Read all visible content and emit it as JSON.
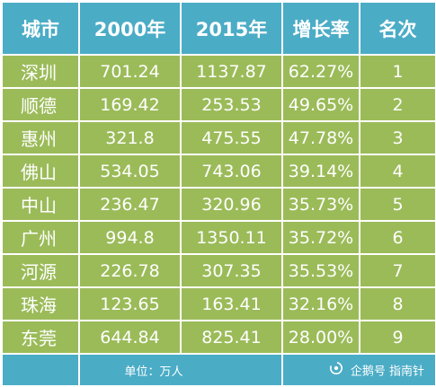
{
  "table": {
    "headers": [
      "城市",
      "2000年",
      "2015年",
      "增长率",
      "名次"
    ],
    "rows": [
      {
        "city": "深圳",
        "y2000": "701.24",
        "y2015": "1137.87",
        "growth": "62.27%",
        "rank": "1"
      },
      {
        "city": "顺德",
        "y2000": "169.42",
        "y2015": "253.53",
        "growth": "49.65%",
        "rank": "2"
      },
      {
        "city": "惠州",
        "y2000": "321.8",
        "y2015": "475.55",
        "growth": "47.78%",
        "rank": "3"
      },
      {
        "city": "佛山",
        "y2000": "534.05",
        "y2015": "743.06",
        "growth": "39.14%",
        "rank": "4"
      },
      {
        "city": "中山",
        "y2000": "236.47",
        "y2015": "320.96",
        "growth": "35.73%",
        "rank": "5"
      },
      {
        "city": "广州",
        "y2000": "994.8",
        "y2015": "1350.11",
        "growth": "35.72%",
        "rank": "6"
      },
      {
        "city": "河源",
        "y2000": "226.78",
        "y2015": "307.35",
        "growth": "35.53%",
        "rank": "7"
      },
      {
        "city": "珠海",
        "y2000": "123.65",
        "y2015": "163.41",
        "growth": "32.16%",
        "rank": "8"
      },
      {
        "city": "东莞",
        "y2000": "644.84",
        "y2015": "825.41",
        "growth": "28.00%",
        "rank": "9"
      }
    ],
    "footer": {
      "unit": "单位：万人",
      "brand": "企鹅号 指南针",
      "brand_icon": "penguin-swirl-icon"
    }
  },
  "colors": {
    "header_bg": "#4bacc6",
    "row_bg": "#9bbb59",
    "text": "#ffffff",
    "grid": "#ffffff"
  }
}
